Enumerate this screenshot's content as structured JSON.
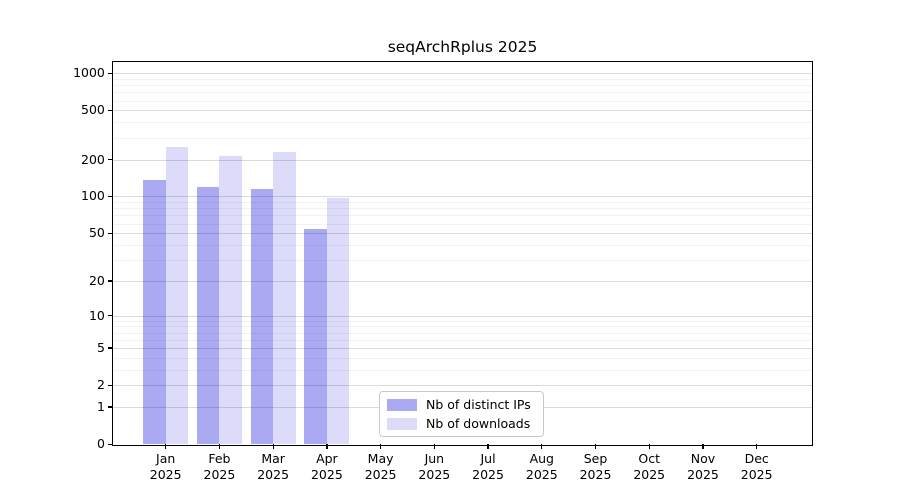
{
  "title": "seqArchRplus 2025",
  "colors": {
    "ips_bar": "#aaaaf2",
    "downloads_bar": "#dcdcfa",
    "grid_major": "rgba(0,0,0,0.14)",
    "grid_minor": "rgba(0,0,0,0.05)",
    "spine": "#000000",
    "legend_border": "#c9c9c9"
  },
  "legend": {
    "items": [
      {
        "label": "Nb of distinct IPs",
        "color_key": "ips_bar"
      },
      {
        "label": "Nb of downloads",
        "color_key": "downloads_bar"
      }
    ]
  },
  "chart_data": {
    "type": "bar",
    "title": "seqArchRplus 2025",
    "scale": "log10(value+1)",
    "categories": [
      "Jan",
      "Feb",
      "Mar",
      "Apr",
      "May",
      "Jun",
      "Jul",
      "Aug",
      "Sep",
      "Oct",
      "Nov",
      "Dec"
    ],
    "year": "2025",
    "series": [
      {
        "name": "Nb of distinct IPs",
        "values": [
          137,
          119,
          116,
          54,
          0,
          0,
          0,
          0,
          0,
          0,
          0,
          0
        ]
      },
      {
        "name": "Nb of downloads",
        "values": [
          253,
          214,
          229,
          97,
          0,
          0,
          0,
          0,
          0,
          0,
          0,
          0
        ]
      }
    ],
    "yticks": [
      0,
      1,
      2,
      5,
      10,
      20,
      50,
      100,
      200,
      500,
      1000
    ],
    "ytick_labels": [
      "0",
      "1",
      "2",
      "5",
      "10",
      "20",
      "50",
      "100",
      "200",
      "500",
      "1000"
    ],
    "minor_yticks": [
      3,
      4,
      6,
      7,
      8,
      9,
      30,
      40,
      60,
      70,
      80,
      90,
      300,
      400,
      600,
      700,
      800,
      900
    ],
    "ylim": [
      0,
      1234
    ],
    "grid": true,
    "legend_position": "lower-center-inside"
  }
}
